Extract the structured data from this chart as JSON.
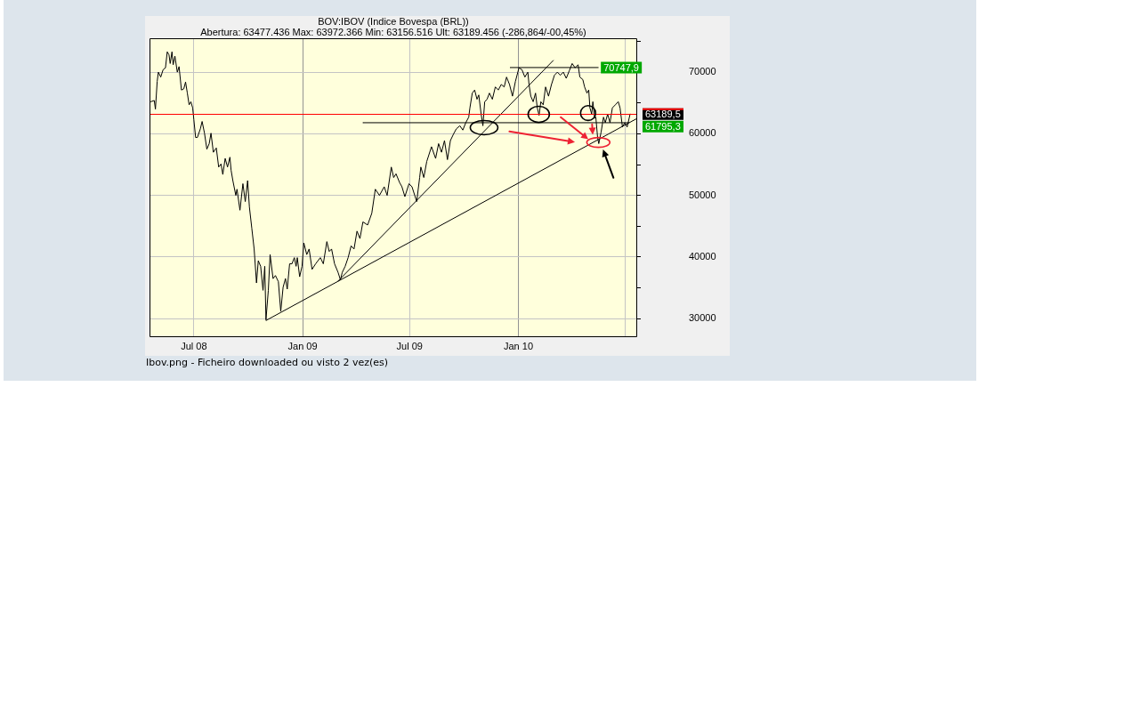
{
  "chart_data": {
    "type": "line",
    "title": "BOV:IBOV (Indice Bovespa (BRL))",
    "subtitle": "Abertura: 63477.436 Max: 63972.366 Min: 63156.516 Ult: 63189.456 (-286,864/-00,45%)",
    "xlim": [
      "2008-04-17",
      "2010-07-21"
    ],
    "xticks": [
      {
        "value": "2008-07-01",
        "label": "Jul 08"
      },
      {
        "value": "2009-01-01",
        "label": "Jan 09"
      },
      {
        "value": "2009-07-01",
        "label": "Jul 09"
      },
      {
        "value": "2010-01-01",
        "label": "Jan 10"
      },
      {
        "value": "2010-07-01",
        "label": null
      }
    ],
    "ylim": [
      27000,
      75500
    ],
    "yticks": [
      30000,
      {
        "value": 35000,
        "label": null
      },
      40000,
      {
        "value": 45000,
        "label": null
      },
      50000,
      {
        "value": 55000,
        "label": null
      },
      60000,
      {
        "value": 65000,
        "label": null
      },
      70000,
      {
        "value": 75000,
        "label": null
      }
    ],
    "grid": true,
    "series": [
      {
        "color": "#000000",
        "x": [
          "2008-04-19",
          "2008-04-25",
          "2008-04-27",
          "2008-04-30",
          "2008-05-02",
          "2008-05-06",
          "2008-05-10",
          "2008-05-14",
          "2008-05-17",
          "2008-05-20",
          "2008-05-22",
          "2008-05-25",
          "2008-05-27",
          "2008-05-30",
          "2008-06-03",
          "2008-06-06",
          "2008-06-10",
          "2008-06-14",
          "2008-06-17",
          "2008-06-20",
          "2008-06-23",
          "2008-06-26",
          "2008-06-29",
          "2008-07-01",
          "2008-07-04",
          "2008-07-07",
          "2008-07-12",
          "2008-07-15",
          "2008-07-19",
          "2008-07-23",
          "2008-07-27",
          "2008-07-30",
          "2008-08-03",
          "2008-08-08",
          "2008-08-12",
          "2008-08-16",
          "2008-08-19",
          "2008-08-23",
          "2008-08-27",
          "2008-08-31",
          "2008-09-02",
          "2008-09-05",
          "2008-09-10",
          "2008-09-12",
          "2008-09-17",
          "2008-09-22",
          "2008-09-26",
          "2008-09-30",
          "2008-10-03",
          "2008-10-07",
          "2008-10-11",
          "2008-10-15",
          "2008-10-18",
          "2008-10-22",
          "2008-10-26",
          "2008-10-29",
          "2008-10-31",
          "2008-11-04",
          "2008-11-07",
          "2008-11-12",
          "2008-11-16",
          "2008-11-21",
          "2008-11-25",
          "2008-11-29",
          "2008-12-03",
          "2008-12-06",
          "2008-12-10",
          "2008-12-14",
          "2008-12-18",
          "2008-12-21",
          "2008-12-23",
          "2008-12-27",
          "2008-12-31",
          "2009-01-03",
          "2009-01-08",
          "2009-01-12",
          "2009-01-17",
          "2009-01-23",
          "2009-01-31",
          "2009-02-05",
          "2009-02-11",
          "2009-02-15",
          "2009-02-19",
          "2009-02-24",
          "2009-03-02",
          "2009-03-06",
          "2009-03-09",
          "2009-03-14",
          "2009-03-19",
          "2009-03-24",
          "2009-03-29",
          "2009-04-03",
          "2009-04-08",
          "2009-04-13",
          "2009-04-21",
          "2009-04-28",
          "2009-05-04",
          "2009-05-11",
          "2009-05-19",
          "2009-05-24",
          "2009-05-31",
          "2009-06-04",
          "2009-06-08",
          "2009-06-14",
          "2009-06-18",
          "2009-06-23",
          "2009-06-30",
          "2009-07-05",
          "2009-07-13",
          "2009-07-18",
          "2009-07-20",
          "2009-07-25",
          "2009-07-30",
          "2009-08-07",
          "2009-08-14",
          "2009-08-19",
          "2009-08-24",
          "2009-08-29",
          "2009-09-03",
          "2009-09-08",
          "2009-09-13",
          "2009-09-18",
          "2009-09-24",
          "2009-09-29",
          "2009-10-04",
          "2009-10-09",
          "2009-10-11",
          "2009-10-15",
          "2009-10-19",
          "2009-10-23",
          "2009-10-26",
          "2009-10-30",
          "2009-11-02",
          "2009-11-05",
          "2009-11-09",
          "2009-11-13",
          "2009-11-18",
          "2009-11-23",
          "2009-11-28",
          "2009-12-03",
          "2009-12-08",
          "2009-12-12",
          "2009-12-17",
          "2009-12-22",
          "2009-12-27",
          "2010-01-02",
          "2010-01-07",
          "2010-01-12",
          "2010-01-17",
          "2010-01-19",
          "2010-01-22",
          "2010-01-26",
          "2010-01-30",
          "2010-02-02",
          "2010-02-05",
          "2010-02-08",
          "2010-02-12",
          "2010-02-16",
          "2010-02-21",
          "2010-02-26",
          "2010-03-03",
          "2010-03-08",
          "2010-03-13",
          "2010-03-18",
          "2010-03-23",
          "2010-03-28",
          "2010-04-02",
          "2010-04-07",
          "2010-04-12",
          "2010-04-15",
          "2010-04-20",
          "2010-04-23",
          "2010-04-27",
          "2010-04-30",
          "2010-05-02",
          "2010-05-05",
          "2010-05-07",
          "2010-05-10",
          "2010-05-12",
          "2010-05-15",
          "2010-05-17",
          "2010-05-21",
          "2010-05-25",
          "2010-05-28",
          "2010-06-01",
          "2010-06-05",
          "2010-06-09",
          "2010-06-14",
          "2010-06-19",
          "2010-06-22",
          "2010-06-26",
          "2010-06-30",
          "2010-07-04",
          "2010-07-09"
        ],
        "values": [
          65200,
          65400,
          64000,
          68500,
          70000,
          69200,
          70400,
          70700,
          73300,
          72800,
          71400,
          73300,
          71200,
          72600,
          70000,
          70900,
          67100,
          67300,
          68400,
          66600,
          64700,
          65200,
          64200,
          62300,
          59400,
          59400,
          60800,
          62000,
          60100,
          57500,
          58400,
          60100,
          57000,
          57700,
          54600,
          55100,
          53400,
          56000,
          54600,
          56200,
          54100,
          52400,
          50000,
          51000,
          47600,
          51900,
          49000,
          52400,
          48100,
          44700,
          41300,
          35800,
          39400,
          38500,
          34600,
          38500,
          29800,
          34600,
          40400,
          36500,
          37000,
          36000,
          31200,
          35100,
          36500,
          34800,
          38900,
          38900,
          39900,
          38500,
          39900,
          36800,
          38500,
          42300,
          40400,
          41300,
          38000,
          38900,
          39900,
          38900,
          42500,
          40900,
          41300,
          38900,
          37500,
          36300,
          37500,
          38500,
          39900,
          41800,
          41300,
          44200,
          43000,
          45700,
          45200,
          47100,
          51000,
          50000,
          51400,
          50000,
          54600,
          52900,
          53500,
          52100,
          51400,
          49800,
          51900,
          51400,
          49000,
          52900,
          54600,
          52900,
          55500,
          57900,
          56000,
          58400,
          57000,
          58900,
          55800,
          58900,
          59900,
          60800,
          61300,
          60600,
          61800,
          62700,
          64200,
          66600,
          67100,
          65600,
          66300,
          63200,
          61300,
          65200,
          65600,
          66600,
          65600,
          67600,
          67100,
          68000,
          67600,
          69200,
          68000,
          66100,
          68500,
          70700,
          70400,
          69200,
          70000,
          68000,
          66100,
          65200,
          66600,
          64200,
          63000,
          65200,
          64700,
          67600,
          66100,
          68000,
          69500,
          70000,
          69500,
          70000,
          69000,
          70200,
          71400,
          70700,
          71200,
          69200,
          68800,
          67600,
          66600,
          67100,
          64200,
          63200,
          65200,
          62500,
          62700,
          59400,
          58400,
          60300,
          62700,
          61800,
          63200,
          61800,
          64200,
          64700,
          65200,
          64200,
          61100,
          61800,
          61100,
          63200
        ]
      },
      {
        "type": "line",
        "color": "#000000",
        "x": [
          "2008-10-31",
          "2010-07-21"
        ],
        "values": [
          29700,
          62500
        ]
      },
      {
        "type": "line",
        "color": "#000000",
        "x": [
          "2009-03-02",
          "2010-03-01"
        ],
        "values": [
          36100,
          71900
        ]
      },
      {
        "type": "line",
        "color": "#000000",
        "x": [
          "2009-12-18",
          "2010-05-16"
        ],
        "values": [
          70747.9,
          70747.9
        ]
      },
      {
        "type": "line",
        "color": "#000000",
        "x": [
          "2009-04-13",
          "2010-07-07"
        ],
        "values": [
          61795.3,
          61795.3
        ]
      }
    ],
    "ref_lines": [
      {
        "axis": "y",
        "value": 63189.5,
        "label": "63189,5",
        "color": "#ff0000"
      }
    ],
    "annotations": [
      {
        "text": "70747,9",
        "x": "2010-05-16",
        "y": 70747.9
      },
      {
        "text": "61795,3",
        "x": "2010-07-07",
        "y": 61795.3
      },
      "Ibov.png - Ficheiro downloaded ou visto 2 vez(es)"
    ]
  }
}
